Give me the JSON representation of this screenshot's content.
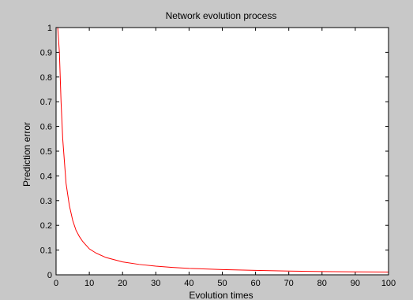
{
  "chart_data": {
    "type": "line",
    "title": "Network evolution process",
    "xlabel": "Evolution times",
    "ylabel": "Prediction error",
    "xlim": [
      0,
      100
    ],
    "ylim": [
      0,
      1
    ],
    "x_ticks": [
      0,
      10,
      20,
      30,
      40,
      50,
      60,
      70,
      80,
      90,
      100
    ],
    "y_ticks": [
      0,
      0.1,
      0.2,
      0.3,
      0.4,
      0.5,
      0.6,
      0.7,
      0.8,
      0.9,
      1
    ],
    "grid": false,
    "series": [
      {
        "color": "#ff0000",
        "x": [
          0.5,
          1,
          1.5,
          2,
          3,
          4,
          5,
          6,
          7,
          8,
          10,
          12,
          15,
          20,
          25,
          30,
          35,
          40,
          50,
          60,
          70,
          80,
          90,
          100
        ],
        "values": [
          1.0,
          0.9,
          0.7,
          0.55,
          0.37,
          0.28,
          0.22,
          0.18,
          0.155,
          0.135,
          0.105,
          0.088,
          0.07,
          0.052,
          0.042,
          0.035,
          0.03,
          0.026,
          0.021,
          0.018,
          0.015,
          0.013,
          0.012,
          0.011
        ]
      }
    ],
    "colors": {
      "background": "#c8c8c8",
      "plot_area": "#ffffff",
      "axes": "#000000",
      "line": "#ff0000"
    }
  }
}
